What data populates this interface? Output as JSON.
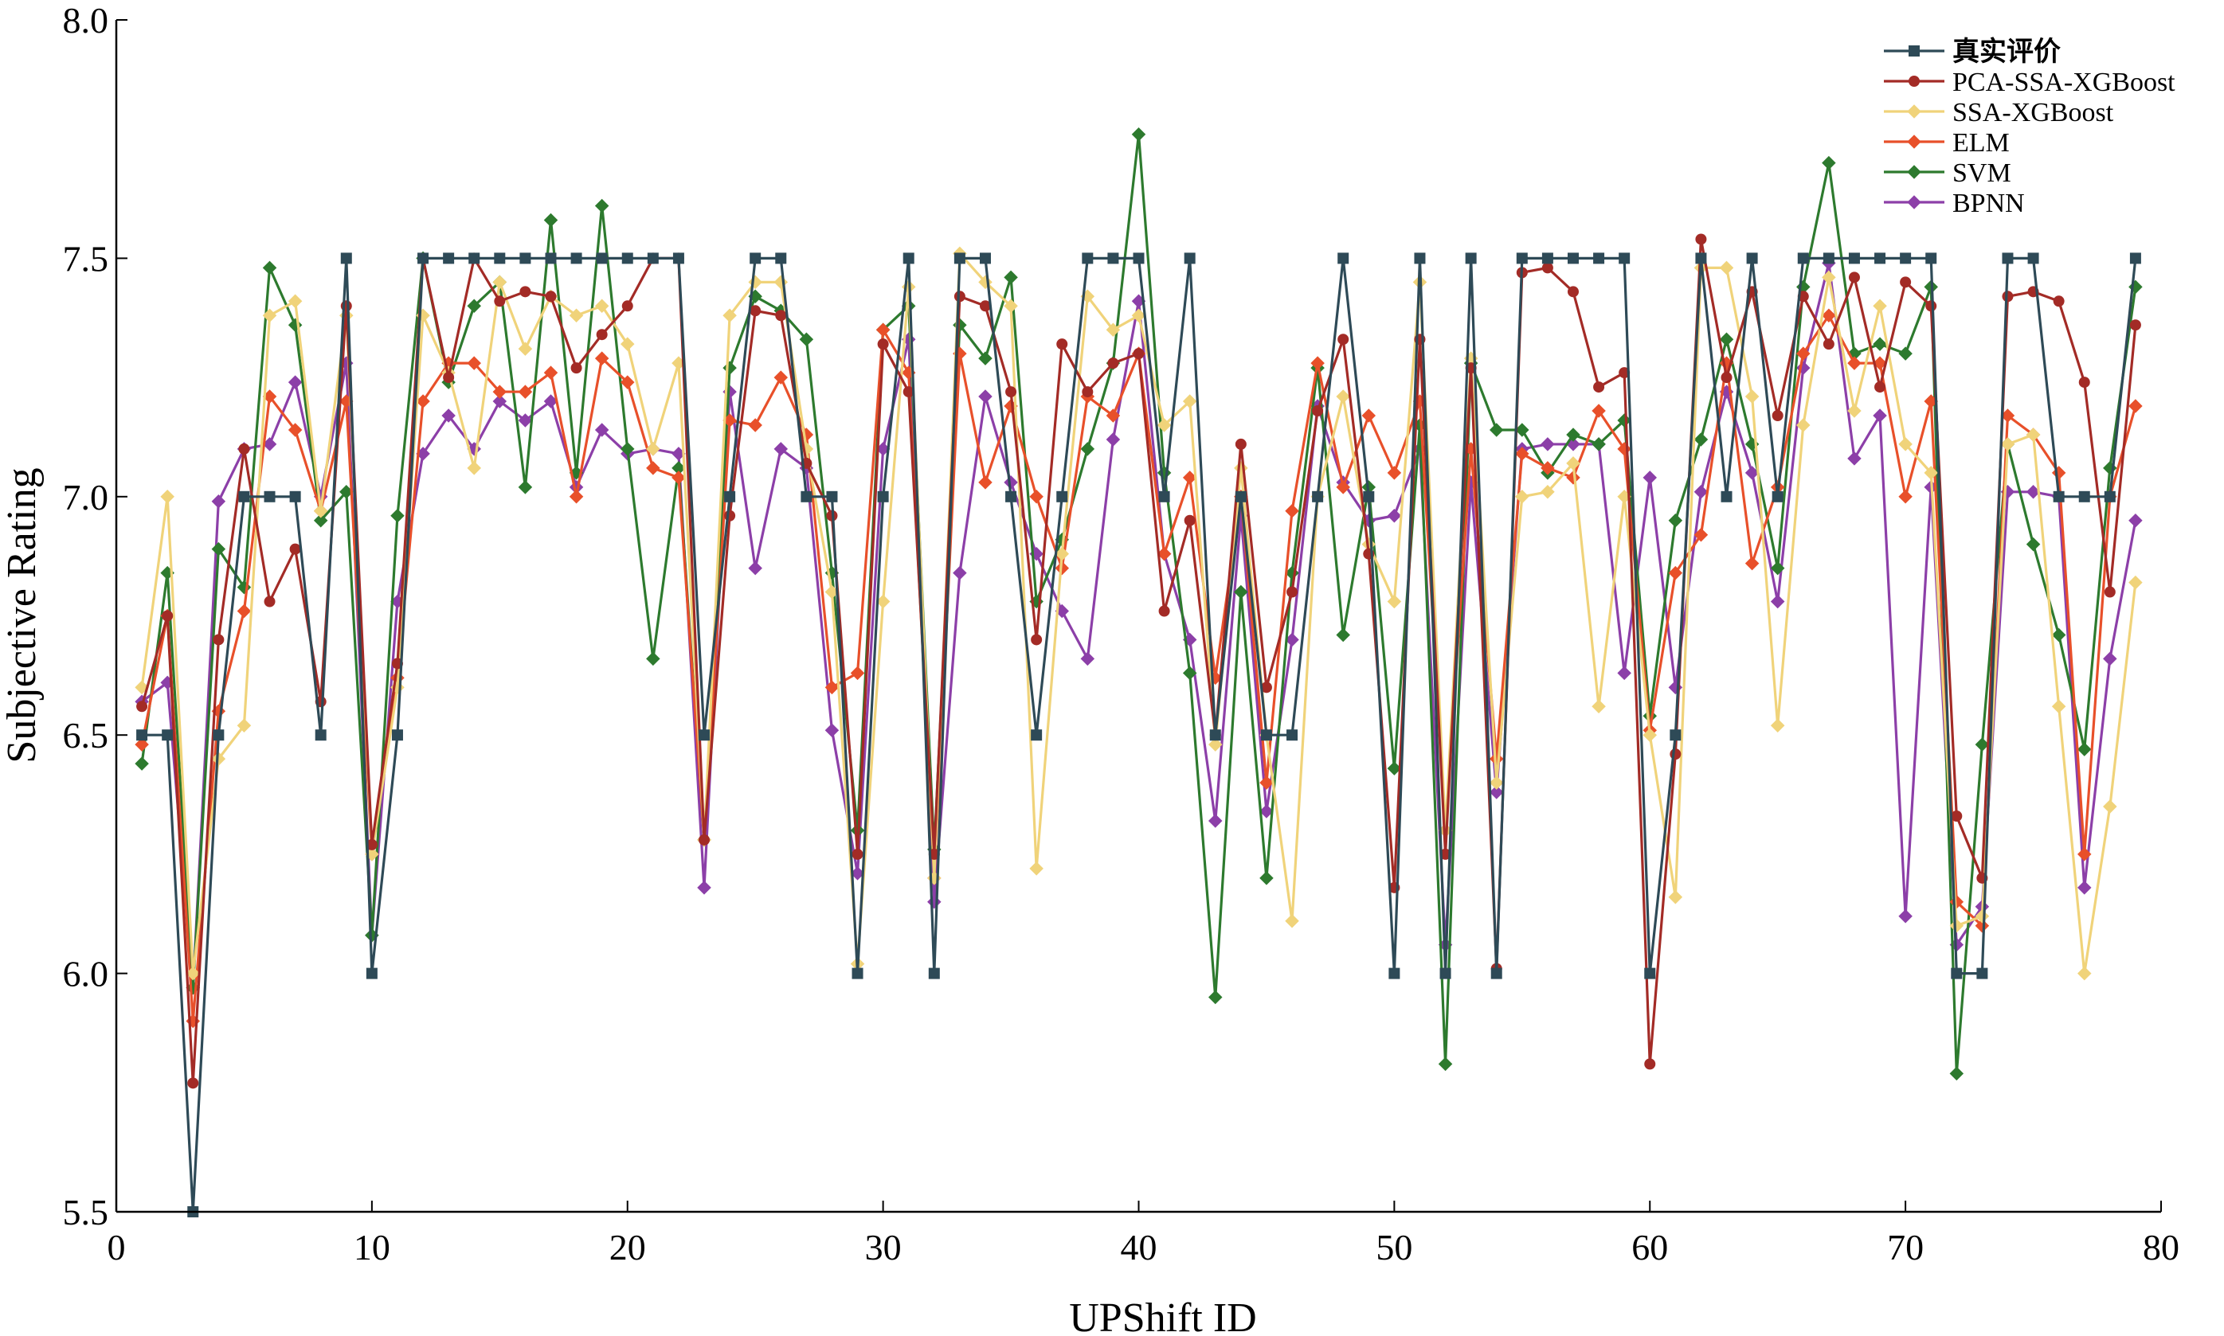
{
  "chart_data": {
    "type": "line",
    "xlabel": "UPShift ID",
    "ylabel": "Subjective Rating",
    "xlim": [
      0,
      80
    ],
    "ylim": [
      5.5,
      8.0
    ],
    "xticks": [
      "0",
      "10",
      "20",
      "30",
      "40",
      "50",
      "60",
      "70",
      "80"
    ],
    "yticks": [
      "5.5",
      "6.0",
      "6.5",
      "7.0",
      "7.5",
      "8.0"
    ],
    "legend_position": "top-right",
    "grid": false,
    "x": [
      1,
      2,
      3,
      4,
      5,
      6,
      7,
      8,
      9,
      10,
      11,
      12,
      13,
      14,
      15,
      16,
      17,
      18,
      19,
      20,
      21,
      22,
      23,
      24,
      25,
      26,
      27,
      28,
      29,
      30,
      31,
      32,
      33,
      34,
      35,
      36,
      37,
      38,
      39,
      40,
      41,
      42,
      43,
      44,
      45,
      46,
      47,
      48,
      49,
      50,
      51,
      52,
      53,
      54,
      55,
      56,
      57,
      58,
      59,
      60,
      61,
      62,
      63,
      64,
      65,
      66,
      67,
      68,
      69,
      70,
      71,
      72,
      73,
      74,
      75,
      76,
      77,
      78,
      79
    ],
    "series": [
      {
        "name": "真实评价",
        "color": "#2e4a57",
        "marker": "square",
        "values": [
          6.5,
          6.5,
          5.5,
          6.5,
          7.0,
          7.0,
          7.0,
          6.5,
          7.5,
          6.0,
          6.5,
          7.5,
          7.5,
          7.5,
          7.5,
          7.5,
          7.5,
          7.5,
          7.5,
          7.5,
          7.5,
          7.5,
          6.5,
          7.0,
          7.5,
          7.5,
          7.0,
          7.0,
          6.0,
          7.0,
          7.5,
          6.0,
          7.5,
          7.5,
          7.0,
          6.5,
          7.0,
          7.5,
          7.5,
          7.5,
          7.0,
          7.5,
          6.5,
          7.0,
          6.5,
          6.5,
          7.0,
          7.5,
          7.0,
          6.0,
          7.5,
          6.0,
          7.5,
          6.0,
          7.5,
          7.5,
          7.5,
          7.5,
          7.5,
          6.0,
          6.5,
          7.5,
          7.0,
          7.5,
          7.0,
          7.5,
          7.5,
          7.5,
          7.5,
          7.5,
          7.5,
          6.0,
          6.0,
          7.5,
          7.5,
          7.0,
          7.0,
          7.0,
          7.5
        ]
      },
      {
        "name": "PCA-SSA-XGBoost",
        "color": "#a32b26",
        "marker": "circle",
        "values": [
          6.56,
          6.75,
          5.77,
          6.7,
          7.1,
          6.78,
          6.89,
          6.57,
          7.4,
          6.27,
          6.65,
          7.5,
          7.25,
          7.5,
          7.41,
          7.43,
          7.42,
          7.27,
          7.34,
          7.4,
          7.5,
          7.5,
          6.28,
          6.96,
          7.39,
          7.38,
          7.07,
          6.96,
          6.25,
          7.32,
          7.22,
          6.25,
          7.42,
          7.4,
          7.22,
          6.7,
          7.32,
          7.22,
          7.28,
          7.3,
          6.76,
          6.95,
          6.5,
          7.11,
          6.6,
          6.8,
          7.18,
          7.33,
          6.88,
          6.18,
          7.33,
          6.25,
          7.27,
          6.01,
          7.47,
          7.48,
          7.43,
          7.23,
          7.26,
          5.81,
          6.46,
          7.54,
          7.25,
          7.43,
          7.17,
          7.42,
          7.32,
          7.46,
          7.23,
          7.45,
          7.4,
          6.33,
          6.2,
          7.42,
          7.43,
          7.41,
          7.24,
          6.8,
          7.36
        ]
      },
      {
        "name": "SSA-XGBoost",
        "color": "#f0d37a",
        "marker": "diamond",
        "values": [
          6.6,
          7.0,
          6.0,
          6.45,
          6.52,
          7.38,
          7.41,
          6.97,
          7.38,
          6.25,
          6.6,
          7.38,
          7.26,
          7.06,
          7.45,
          7.31,
          7.42,
          7.38,
          7.4,
          7.32,
          7.1,
          7.28,
          6.28,
          7.38,
          7.45,
          7.45,
          7.1,
          6.8,
          6.02,
          6.78,
          7.44,
          6.2,
          7.51,
          7.45,
          7.4,
          6.22,
          6.88,
          7.42,
          7.35,
          7.38,
          7.15,
          7.2,
          6.48,
          7.06,
          6.5,
          6.11,
          7.0,
          7.21,
          6.9,
          6.78,
          7.45,
          6.3,
          7.29,
          6.4,
          7.0,
          7.01,
          7.07,
          6.56,
          7.0,
          6.5,
          6.16,
          7.48,
          7.48,
          7.21,
          6.52,
          7.15,
          7.46,
          7.18,
          7.4,
          7.11,
          7.05,
          6.1,
          6.12,
          7.11,
          7.13,
          6.56,
          6.0,
          6.35,
          6.82
        ]
      },
      {
        "name": "ELM",
        "color": "#e8502a",
        "marker": "diamond",
        "values": [
          6.48,
          6.75,
          5.9,
          6.55,
          6.76,
          7.21,
          7.14,
          6.97,
          7.2,
          6.25,
          6.62,
          7.2,
          7.28,
          7.28,
          7.22,
          7.22,
          7.26,
          7.0,
          7.29,
          7.24,
          7.06,
          7.04,
          6.28,
          7.16,
          7.15,
          7.25,
          7.13,
          6.6,
          6.63,
          7.35,
          7.26,
          6.2,
          7.3,
          7.03,
          7.19,
          7.0,
          6.85,
          7.21,
          7.17,
          7.3,
          6.88,
          7.04,
          6.62,
          7.0,
          6.4,
          6.97,
          7.28,
          7.02,
          7.17,
          7.05,
          7.2,
          6.3,
          7.1,
          6.45,
          7.09,
          7.06,
          7.04,
          7.18,
          7.1,
          6.51,
          6.84,
          6.92,
          7.28,
          6.86,
          7.02,
          7.3,
          7.38,
          7.28,
          7.28,
          7.0,
          7.2,
          6.15,
          6.1,
          7.17,
          7.13,
          7.05,
          6.25,
          7.0,
          7.19
        ]
      },
      {
        "name": "SVM",
        "color": "#2d7a2e",
        "marker": "diamond",
        "values": [
          6.44,
          6.84,
          5.97,
          6.89,
          6.81,
          7.48,
          7.36,
          6.95,
          7.01,
          6.08,
          6.96,
          7.5,
          7.24,
          7.4,
          7.45,
          7.02,
          7.58,
          7.05,
          7.61,
          7.1,
          6.66,
          7.06,
          6.28,
          7.27,
          7.42,
          7.39,
          7.33,
          6.84,
          6.3,
          7.35,
          7.4,
          6.26,
          7.36,
          7.29,
          7.46,
          6.78,
          6.91,
          7.1,
          7.28,
          7.76,
          7.05,
          6.63,
          5.95,
          6.8,
          6.2,
          6.84,
          7.27,
          6.71,
          7.02,
          6.43,
          7.15,
          5.81,
          7.28,
          7.14,
          7.14,
          7.05,
          7.13,
          7.11,
          7.16,
          6.54,
          6.95,
          7.12,
          7.33,
          7.11,
          6.85,
          7.44,
          7.7,
          7.3,
          7.32,
          7.3,
          7.44,
          5.79,
          6.48,
          7.11,
          6.9,
          6.71,
          6.47,
          7.06,
          7.44
        ]
      },
      {
        "name": "BPNN",
        "color": "#8c3fa8",
        "marker": "diamond",
        "values": [
          6.57,
          6.61,
          5.97,
          6.99,
          7.1,
          7.11,
          7.24,
          7.0,
          7.28,
          6.08,
          6.78,
          7.09,
          7.17,
          7.1,
          7.2,
          7.16,
          7.2,
          7.02,
          7.14,
          7.09,
          7.1,
          7.09,
          6.18,
          7.22,
          6.85,
          7.1,
          7.06,
          6.51,
          6.21,
          7.1,
          7.33,
          6.15,
          6.84,
          7.21,
          7.03,
          6.88,
          6.76,
          6.66,
          7.12,
          7.41,
          6.88,
          6.7,
          6.32,
          6.96,
          6.34,
          6.7,
          7.19,
          7.03,
          6.95,
          6.96,
          7.1,
          6.06,
          7.03,
          6.38,
          7.1,
          7.11,
          7.11,
          7.11,
          6.63,
          7.04,
          6.6,
          7.01,
          7.22,
          7.05,
          6.78,
          7.27,
          7.49,
          7.08,
          7.17,
          6.12,
          7.02,
          6.06,
          6.14,
          7.01,
          7.01,
          7.0,
          6.18,
          6.66,
          6.95
        ]
      }
    ]
  }
}
